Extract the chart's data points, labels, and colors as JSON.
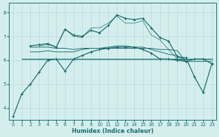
{
  "xlabel": "Humidex (Indice chaleur)",
  "bg_color": "#d4eeee",
  "grid_color": "#b8d8d8",
  "line_color": "#1a6b6b",
  "xlim": [
    -0.5,
    23.5
  ],
  "ylim": [
    3.5,
    8.4
  ],
  "yticks": [
    4,
    5,
    6,
    7,
    8
  ],
  "xticks": [
    0,
    1,
    2,
    3,
    4,
    5,
    6,
    7,
    8,
    9,
    10,
    11,
    12,
    13,
    14,
    15,
    16,
    17,
    18,
    19,
    20,
    21,
    22,
    23
  ],
  "line_main_x": [
    0,
    1,
    2,
    3,
    4,
    5,
    6,
    7,
    8,
    9,
    10,
    11,
    12,
    13,
    14,
    15,
    16,
    17,
    18,
    19,
    20,
    21,
    22,
    23
  ],
  "line_main_y": [
    3.65,
    4.6,
    5.0,
    5.5,
    6.0,
    6.05,
    5.55,
    6.05,
    6.2,
    6.35,
    6.45,
    6.5,
    6.55,
    6.55,
    6.55,
    6.45,
    6.3,
    6.05,
    6.05,
    6.0,
    5.95,
    6.05,
    6.05,
    5.85
  ],
  "line_dotted_x": [
    2,
    3,
    4,
    5,
    6,
    7,
    8,
    9,
    10,
    11,
    12,
    13,
    14,
    15,
    16,
    17,
    18,
    19,
    20,
    21,
    22,
    23
  ],
  "line_dotted_y": [
    6.6,
    6.65,
    6.7,
    6.55,
    7.3,
    7.05,
    7.0,
    7.25,
    7.15,
    7.45,
    7.9,
    7.75,
    7.7,
    7.75,
    7.35,
    6.95,
    6.8,
    6.15,
    6.1,
    5.3,
    4.65,
    5.85
  ],
  "line_flat1_x": [
    1,
    2,
    3,
    4,
    5,
    6,
    7,
    8,
    9,
    10,
    11,
    12,
    13,
    14,
    15,
    16,
    17,
    18,
    19,
    20,
    21,
    22,
    23
  ],
  "line_flat1_y": [
    6.05,
    6.05,
    6.05,
    6.05,
    6.05,
    6.05,
    6.05,
    6.05,
    6.05,
    6.05,
    6.05,
    6.05,
    6.05,
    6.05,
    6.05,
    6.05,
    6.05,
    6.05,
    6.05,
    6.05,
    6.05,
    6.05,
    6.05
  ],
  "line_flat2_x": [
    2,
    3,
    4,
    5,
    6,
    7,
    8,
    9,
    10,
    11,
    12,
    13,
    14,
    15,
    16,
    17,
    18,
    19,
    20
  ],
  "line_flat2_y": [
    6.35,
    6.35,
    6.4,
    6.35,
    6.35,
    6.35,
    6.45,
    6.5,
    6.5,
    6.55,
    6.6,
    6.6,
    6.55,
    6.55,
    6.45,
    6.35,
    6.25,
    6.2,
    5.95
  ],
  "line_flat3_x": [
    2,
    3,
    4,
    5,
    6,
    7,
    8,
    9,
    10,
    11,
    12,
    13,
    14,
    15,
    16,
    17,
    18,
    19,
    20,
    21,
    22,
    23
  ],
  "line_flat3_y": [
    6.55,
    6.55,
    6.55,
    6.5,
    6.5,
    6.45,
    6.5,
    6.5,
    6.5,
    6.5,
    6.5,
    6.5,
    6.5,
    6.5,
    6.5,
    6.45,
    6.45,
    6.4,
    5.95,
    5.95,
    5.95,
    5.95
  ],
  "line_top_x": [
    3,
    4,
    5,
    6,
    7,
    8,
    9,
    10,
    11,
    12,
    13,
    14,
    15,
    16,
    17,
    18,
    19,
    20
  ],
  "line_top_y": [
    6.6,
    6.65,
    6.55,
    7.3,
    7.0,
    6.95,
    7.35,
    7.35,
    7.55,
    7.85,
    7.55,
    7.55,
    7.65,
    7.05,
    6.85,
    6.45,
    6.05,
    5.95
  ]
}
